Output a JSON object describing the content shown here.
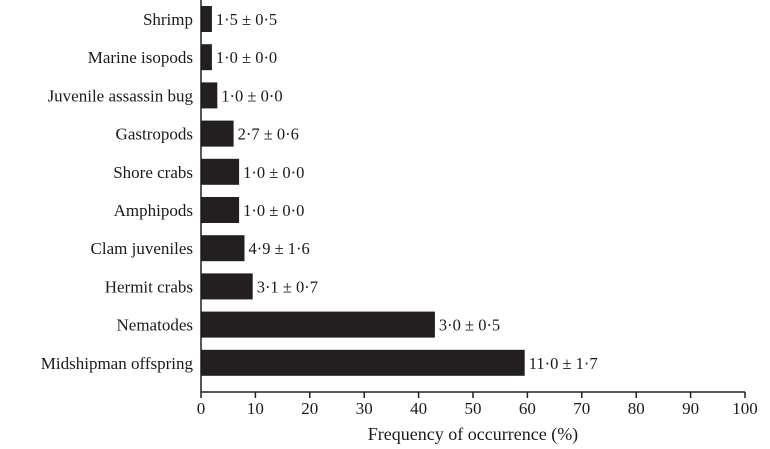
{
  "chart_data": {
    "type": "bar",
    "orientation": "horizontal",
    "categories": [
      "Shrimp",
      "Marine isopods",
      "Juvenile assassin bug",
      "Gastropods",
      "Shore crabs",
      "Amphipods",
      "Clam juveniles",
      "Hermit crabs",
      "Nematodes",
      "Midshipman offspring"
    ],
    "values": [
      2,
      2,
      3,
      6,
      7,
      7,
      8,
      9.5,
      43,
      59.5
    ],
    "data_labels": [
      "1·5 ± 0·5",
      "1·0 ± 0·0",
      "1·0 ± 0·0",
      "2·7 ± 0·6",
      "1·0 ± 0·0",
      "1·0 ± 0·0",
      "4·9 ± 1·6",
      "3·1 ± 0·7",
      "3·0 ± 0·5",
      "11·0 ± 1·7"
    ],
    "xlabel": "Frequency of occurrence (%)",
    "ylabel": "",
    "xlim": [
      0,
      100
    ],
    "xticks": [
      "0",
      "10",
      "20",
      "30",
      "40",
      "50",
      "60",
      "70",
      "80",
      "90",
      "100"
    ],
    "bar_color": "#231f20",
    "grid": false,
    "legend": false
  }
}
